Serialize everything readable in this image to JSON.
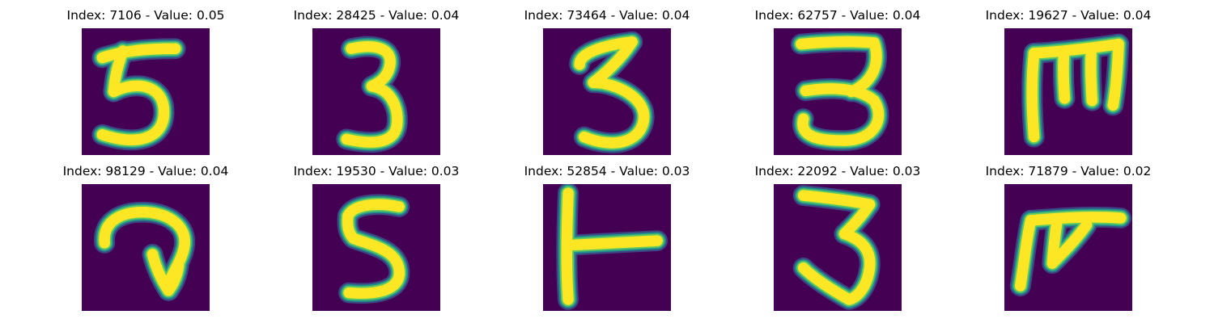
{
  "colors": {
    "background": "#440154",
    "stroke_core": "#fde725",
    "stroke_mid": "#5ec962",
    "stroke_edge": "#21918c",
    "stroke_outer": "#3b528b"
  },
  "panels": [
    {
      "title": "Index: 7106 - Value: 0.05",
      "index": 7106,
      "value": 0.05,
      "glyph": "5"
    },
    {
      "title": "Index: 28425 - Value: 0.04",
      "index": 28425,
      "value": 0.04,
      "glyph": "3"
    },
    {
      "title": "Index: 73464 - Value: 0.04",
      "index": 73464,
      "value": 0.04,
      "glyph": "3"
    },
    {
      "title": "Index: 62757 - Value: 0.04",
      "index": 62757,
      "value": 0.04,
      "glyph": "3"
    },
    {
      "title": "Index: 19627 - Value: 0.04",
      "index": 19627,
      "value": 0.04,
      "glyph": "m"
    },
    {
      "title": "Index: 98129 - Value: 0.04",
      "index": 98129,
      "value": 0.04,
      "glyph": "curl"
    },
    {
      "title": "Index: 19530 - Value: 0.03",
      "index": 19530,
      "value": 0.03,
      "glyph": "5"
    },
    {
      "title": "Index: 52854 - Value: 0.03",
      "index": 52854,
      "value": 0.03,
      "glyph": "T"
    },
    {
      "title": "Index: 22092 - Value: 0.03",
      "index": 22092,
      "value": 0.03,
      "glyph": "3"
    },
    {
      "title": "Index: 71879 - Value: 0.02",
      "index": 71879,
      "value": 0.02,
      "glyph": "F"
    }
  ]
}
